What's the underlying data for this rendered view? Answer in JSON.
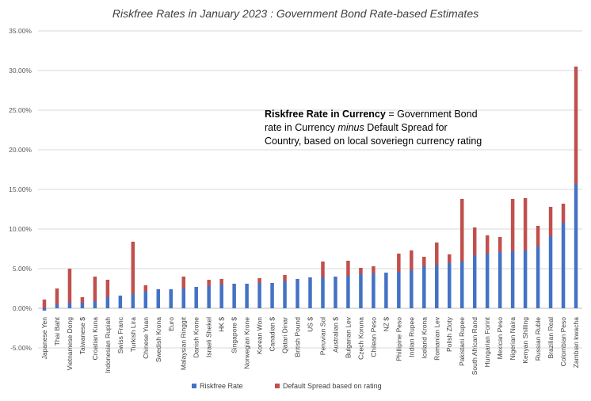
{
  "chart_data": {
    "type": "bar",
    "stacked": true,
    "title": "Riskfree Rates in January 2023 : Government Bond Rate-based Estimates",
    "xlabel": "",
    "ylabel": "",
    "ylim": [
      -0.05,
      0.35
    ],
    "yticks": [
      "-5.00%",
      "0.00%",
      "5.00%",
      "10.00%",
      "15.00%",
      "20.00%",
      "25.00%",
      "30.00%",
      "35.00%"
    ],
    "yticks_values": [
      -0.05,
      0.0,
      0.05,
      0.1,
      0.15,
      0.2,
      0.25,
      0.3,
      0.35
    ],
    "grid": true,
    "legend_position": "bottom-center",
    "categories": [
      "Japanese Yen",
      "Thai Baht",
      "Vietnamese Dong",
      "Taiwanese $",
      "Croatian Kuna",
      "Indonesian Rupiah",
      "Swiss Franc",
      "Turkish Lira",
      "Chinese Yuan",
      "Swedish Krona",
      "Euro",
      "Malaysian Ringgit",
      "Danish Krone",
      "Israeli Shekel",
      "HK $",
      "Singapore $",
      "Norwegian Krone",
      "Korean Won",
      "Canadian $",
      "Qatari Dinar",
      "British Pound",
      "US $",
      "Peruvian Sol",
      "Australian $",
      "Bulgarian Lev",
      "Czech Koruna",
      "Chilean Peso",
      "NZ $",
      "Phillipine Peso",
      "Indian Rupee",
      "Iceland Krona",
      "Romanian Lev",
      "Polish Zloty",
      "Pakistani Rupee",
      "South African Rand",
      "Hungarian Forint",
      "Mexican Peso",
      "Nigerian Naira",
      "Kenyan Shilling",
      "Russian Ruble",
      "Brazilian Real",
      "Colombian Peso",
      "Zambian kwacha"
    ],
    "series": [
      {
        "name": "Riskfree Rate",
        "color": "#4472C4",
        "values": [
          -0.003,
          0.005,
          0.007,
          0.007,
          0.009,
          0.014,
          0.016,
          0.018,
          0.021,
          0.024,
          0.024,
          0.025,
          0.027,
          0.028,
          0.03,
          0.031,
          0.031,
          0.032,
          0.032,
          0.034,
          0.037,
          0.039,
          0.039,
          0.04,
          0.041,
          0.043,
          0.044,
          0.045,
          0.046,
          0.048,
          0.053,
          0.055,
          0.057,
          0.059,
          0.067,
          0.069,
          0.071,
          0.072,
          0.073,
          0.078,
          0.091,
          0.108,
          0.157
        ]
      },
      {
        "name": "Default Spread based on rating",
        "color": "#C0504D",
        "values": [
          0.011,
          0.02,
          0.043,
          0.007,
          0.031,
          0.022,
          0.0,
          0.066,
          0.008,
          0.0,
          0.0,
          0.015,
          0.0,
          0.008,
          0.007,
          0.0,
          0.0,
          0.006,
          0.0,
          0.008,
          0.0,
          0.0,
          0.02,
          0.0,
          0.019,
          0.008,
          0.009,
          0.0,
          0.023,
          0.025,
          0.012,
          0.028,
          0.011,
          0.079,
          0.035,
          0.023,
          0.019,
          0.066,
          0.066,
          0.026,
          0.037,
          0.024,
          0.148
        ]
      }
    ],
    "annotation": {
      "bold_part": "Riskfree Rate in Currency",
      "line1_rest": " = Government Bond",
      "line2_pre": "rate in Currency ",
      "line2_italic": "minus",
      "line2_post": " Default Spread for",
      "line3": "Country, based on local soveriegn currency rating"
    }
  }
}
